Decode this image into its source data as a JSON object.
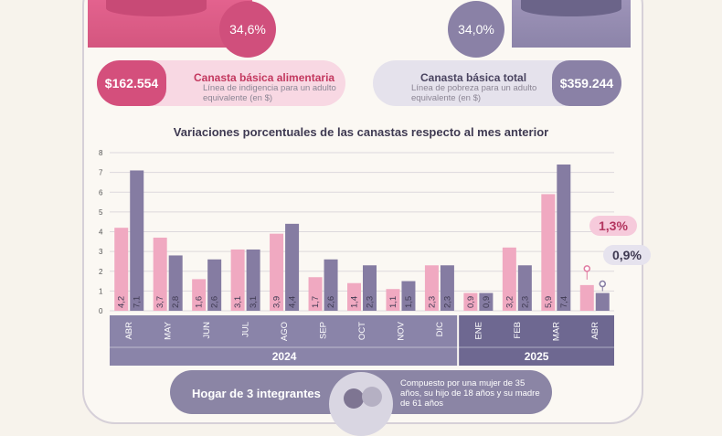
{
  "header": {
    "food": {
      "percent": "34,6%",
      "price": "$162.554",
      "title": "Canasta básica alimentaria",
      "subtitle": "Línea de indigencia para un adulto equivalente (en $)"
    },
    "total": {
      "percent": "34,0%",
      "price": "$359.244",
      "title": "Canasta básica total",
      "subtitle": "Línea de pobreza para un adulto equivalente (en $)"
    }
  },
  "colors": {
    "pink": "#f0a9c1",
    "lilac": "#857ca2",
    "axis_band": "#6e6891",
    "axis_band_light": "#8a84a9"
  },
  "chart_data": {
    "type": "bar",
    "title": "Variaciones porcentuales de las canastas respecto al mes anterior",
    "categories": [
      "ABR",
      "MAY",
      "JUN",
      "JUL",
      "AGO",
      "SEP",
      "OCT",
      "NOV",
      "DIC",
      "ENE",
      "FEB",
      "MAR",
      "ABR"
    ],
    "years": [
      {
        "label": "2024",
        "start": 0,
        "end": 8
      },
      {
        "label": "2025",
        "start": 9,
        "end": 12
      }
    ],
    "series": [
      {
        "values": [
          4.2,
          3.7,
          1.6,
          3.1,
          3.9,
          1.7,
          1.4,
          1.1,
          2.3,
          0.9,
          3.2,
          5.9,
          1.3
        ],
        "labels": [
          "4,2",
          "3,7",
          "1,6",
          "3,1",
          "3,9",
          "1,7",
          "1,4",
          "1,1",
          "2,3",
          "0,9",
          "3,2",
          "5,9",
          ""
        ],
        "color": "#f0a9c1"
      },
      {
        "values": [
          7.1,
          2.8,
          2.6,
          3.1,
          4.4,
          2.6,
          2.3,
          1.5,
          2.3,
          0.9,
          2.3,
          7.4,
          0.9
        ],
        "labels": [
          "7,1",
          "2,8",
          "2,6",
          "3,1",
          "4,4",
          "2,6",
          "2,3",
          "1,5",
          "2,3",
          "0,9",
          "2,3",
          "7,4",
          ""
        ],
        "color": "#857ca2"
      }
    ],
    "yticks": [
      "0",
      "1",
      "2",
      "3",
      "4",
      "5",
      "6",
      "7",
      "8"
    ],
    "ylim": [
      0,
      8
    ],
    "grid": true,
    "callouts": {
      "food": "1,3%",
      "total": "0,9%"
    }
  },
  "footer": {
    "title": "Hogar de 3 integrantes",
    "description": "Compuesto por una mujer de 35 años, su hijo de 18 años y su madre de 61 años"
  }
}
